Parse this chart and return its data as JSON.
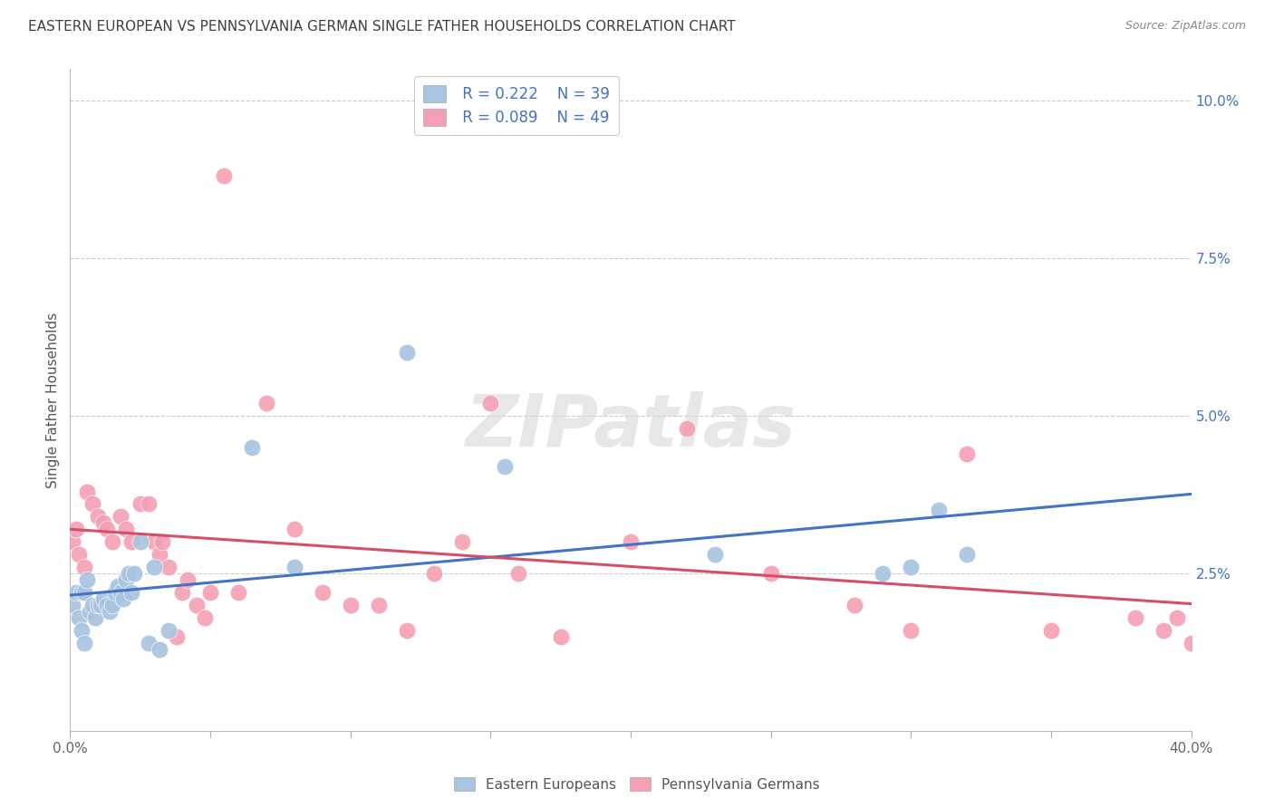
{
  "title": "EASTERN EUROPEAN VS PENNSYLVANIA GERMAN SINGLE FATHER HOUSEHOLDS CORRELATION CHART",
  "source": "Source: ZipAtlas.com",
  "ylabel": "Single Father Households",
  "xlim": [
    0,
    0.4
  ],
  "ylim": [
    0,
    0.105
  ],
  "xticks": [
    0.0,
    0.05,
    0.1,
    0.15,
    0.2,
    0.25,
    0.3,
    0.35,
    0.4
  ],
  "yticks_right": [
    0.0,
    0.025,
    0.05,
    0.075,
    0.1
  ],
  "ytick_labels_right": [
    "",
    "2.5%",
    "5.0%",
    "7.5%",
    "10.0%"
  ],
  "legend_blue_r": "R = 0.222",
  "legend_blue_n": "N = 39",
  "legend_pink_r": "R = 0.089",
  "legend_pink_n": "N = 49",
  "legend_label_blue": "Eastern Europeans",
  "legend_label_pink": "Pennsylvania Germans",
  "blue_color": "#a8c4e0",
  "pink_color": "#f4a0b4",
  "blue_line_color": "#4472c4",
  "pink_line_color": "#d4506a",
  "title_color": "#404040",
  "source_color": "#888888",
  "grid_color": "#cccccc",
  "watermark": "ZIPatlas",
  "blue_scatter_x": [
    0.001,
    0.002,
    0.003,
    0.004,
    0.004,
    0.005,
    0.005,
    0.006,
    0.007,
    0.008,
    0.009,
    0.01,
    0.011,
    0.012,
    0.013,
    0.014,
    0.015,
    0.016,
    0.017,
    0.018,
    0.019,
    0.02,
    0.021,
    0.022,
    0.023,
    0.025,
    0.028,
    0.03,
    0.032,
    0.035,
    0.065,
    0.08,
    0.12,
    0.155,
    0.23,
    0.29,
    0.3,
    0.31,
    0.32
  ],
  "blue_scatter_y": [
    0.02,
    0.022,
    0.018,
    0.022,
    0.016,
    0.014,
    0.022,
    0.024,
    0.019,
    0.02,
    0.018,
    0.02,
    0.02,
    0.021,
    0.02,
    0.019,
    0.02,
    0.022,
    0.023,
    0.022,
    0.021,
    0.024,
    0.025,
    0.022,
    0.025,
    0.03,
    0.014,
    0.026,
    0.013,
    0.016,
    0.045,
    0.026,
    0.06,
    0.042,
    0.028,
    0.025,
    0.026,
    0.035,
    0.028
  ],
  "pink_scatter_x": [
    0.001,
    0.002,
    0.003,
    0.005,
    0.006,
    0.008,
    0.01,
    0.012,
    0.013,
    0.015,
    0.018,
    0.02,
    0.022,
    0.025,
    0.028,
    0.03,
    0.032,
    0.033,
    0.035,
    0.038,
    0.04,
    0.042,
    0.045,
    0.048,
    0.05,
    0.055,
    0.06,
    0.07,
    0.08,
    0.09,
    0.1,
    0.11,
    0.12,
    0.13,
    0.14,
    0.15,
    0.16,
    0.175,
    0.2,
    0.22,
    0.25,
    0.28,
    0.3,
    0.32,
    0.35,
    0.38,
    0.39,
    0.395,
    0.4
  ],
  "pink_scatter_y": [
    0.03,
    0.032,
    0.028,
    0.026,
    0.038,
    0.036,
    0.034,
    0.033,
    0.032,
    0.03,
    0.034,
    0.032,
    0.03,
    0.036,
    0.036,
    0.03,
    0.028,
    0.03,
    0.026,
    0.015,
    0.022,
    0.024,
    0.02,
    0.018,
    0.022,
    0.088,
    0.022,
    0.052,
    0.032,
    0.022,
    0.02,
    0.02,
    0.016,
    0.025,
    0.03,
    0.052,
    0.025,
    0.015,
    0.03,
    0.048,
    0.025,
    0.02,
    0.016,
    0.044,
    0.016,
    0.018,
    0.016,
    0.018,
    0.014
  ]
}
